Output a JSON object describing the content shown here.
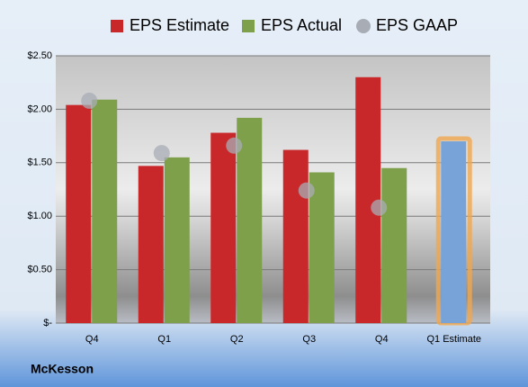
{
  "chart_data": {
    "type": "bar",
    "categories": [
      "Q4",
      "Q1",
      "Q2",
      "Q3",
      "Q4",
      "Q1 Estimate"
    ],
    "series": [
      {
        "name": "EPS Estimate",
        "color": "#c8282a",
        "values": [
          2.04,
          1.47,
          1.78,
          1.62,
          2.3,
          1.7
        ],
        "point_colors": [
          "#c8282a",
          "#c8282a",
          "#c8282a",
          "#c8282a",
          "#c8282a",
          "#78a3d8"
        ],
        "highlight": [
          false,
          false,
          false,
          false,
          false,
          true
        ],
        "highlight_color": "#f0a850"
      },
      {
        "name": "EPS Actual",
        "color": "#7fa04a",
        "values": [
          2.09,
          1.55,
          1.92,
          1.41,
          1.45,
          null
        ]
      },
      {
        "name": "EPS GAAP",
        "color": "#a8acb4",
        "marker": "circle",
        "values": [
          2.08,
          1.59,
          1.66,
          1.24,
          1.08,
          null
        ]
      }
    ],
    "ylim": [
      0,
      2.5
    ],
    "yticks": [
      {
        "value": 0,
        "label": "$-"
      },
      {
        "value": 0.5,
        "label": "$0.50"
      },
      {
        "value": 1,
        "label": "$1.00"
      },
      {
        "value": 1.5,
        "label": "$1.50"
      },
      {
        "value": 2,
        "label": "$2.00"
      },
      {
        "value": 2.5,
        "label": "$2.50"
      }
    ],
    "grid": true,
    "legend": "top",
    "footer": "McKesson"
  }
}
